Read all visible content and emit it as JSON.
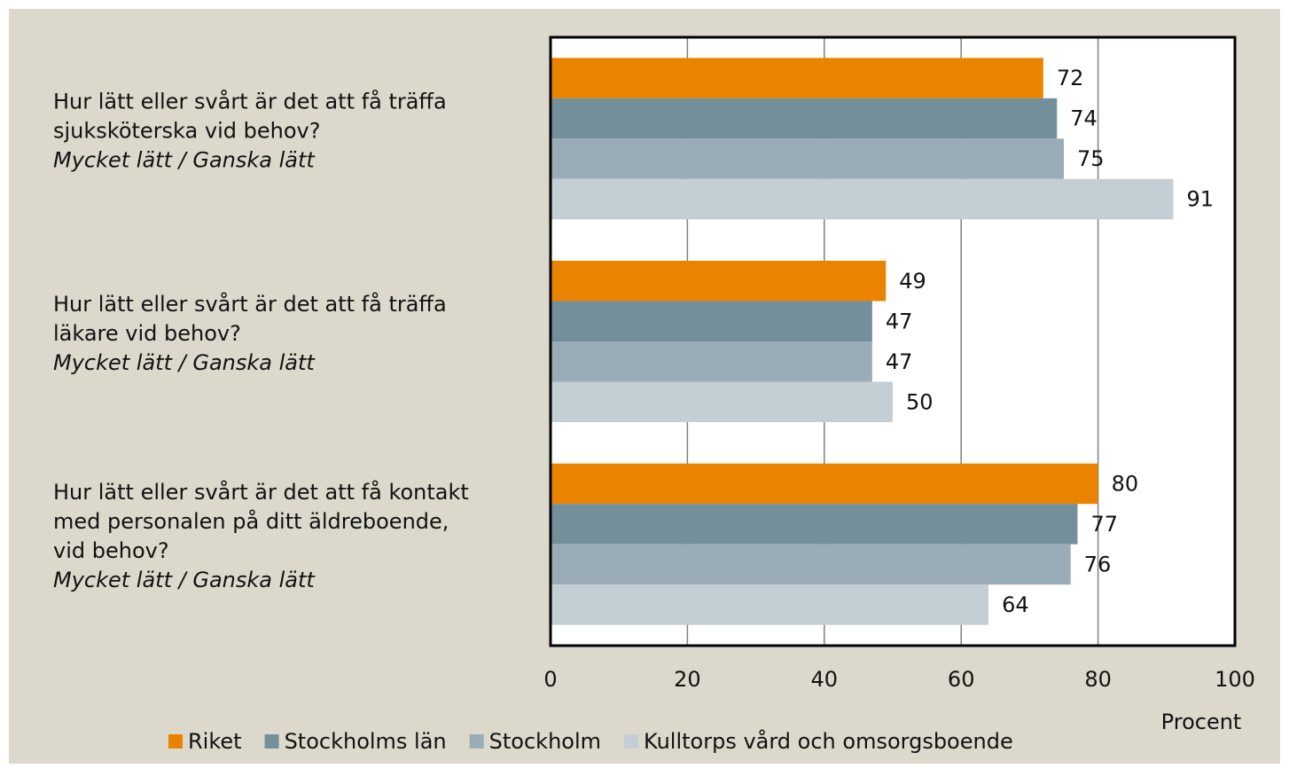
{
  "chart_data": {
    "type": "barh",
    "categories": [
      [
        "Hur lätt eller svårt är det att få träffa",
        "sjuksköterska vid behov?"
      ],
      [
        "Hur lätt eller svårt är det att få träffa",
        "läkare vid behov?"
      ],
      [
        "Hur lätt eller svårt är det att få kontakt",
        "med personalen på ditt äldreboende,",
        "vid behov?"
      ]
    ],
    "category_notes": [
      "Mycket lätt / Ganska lätt",
      "Mycket lätt / Ganska lätt",
      "Mycket lätt / Ganska lätt"
    ],
    "series": [
      {
        "name": "Riket",
        "color": "#e98300",
        "values": [
          72,
          49,
          80
        ]
      },
      {
        "name": "Stockholms län",
        "color": "#738f9c",
        "values": [
          74,
          47,
          77
        ]
      },
      {
        "name": "Stockholm",
        "color": "#9aacb7",
        "values": [
          75,
          47,
          76
        ]
      },
      {
        "name": "Kulltorps vård och omsorgsboende",
        "color": "#c4ced5",
        "values": [
          91,
          50,
          64
        ]
      }
    ],
    "x_label": "Procent",
    "xlim": [
      0,
      100
    ],
    "xticks": [
      0,
      20,
      40,
      60,
      80,
      100
    ],
    "grid": true,
    "legend": "bottom"
  }
}
